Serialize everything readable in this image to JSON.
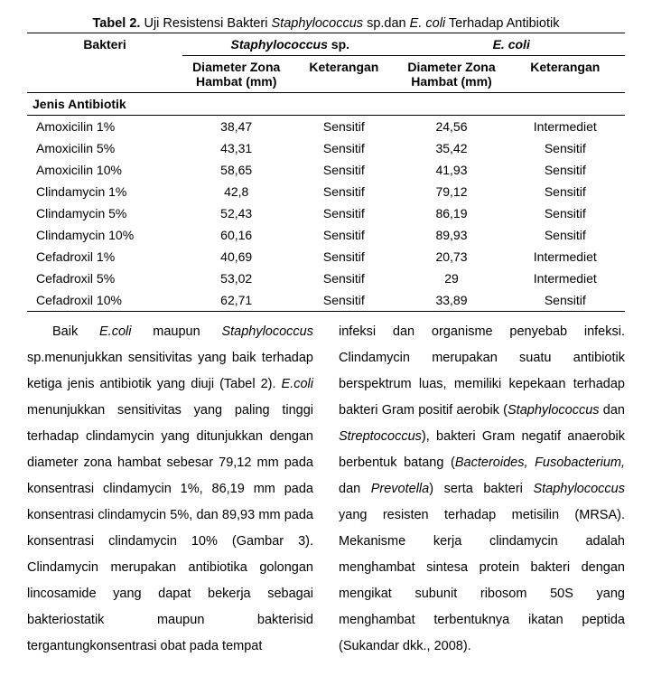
{
  "caption": {
    "label": "Tabel 2.",
    "text_before": " Uji Resistensi Bakteri ",
    "species1": "Staphylococcus",
    "text_mid1": " sp.dan ",
    "species2": "E. coli",
    "text_after": " Terhadap Antibiotik"
  },
  "table": {
    "col_bakteri": "Bakteri",
    "group_staph": "Staphylococcus",
    "group_staph_suffix": " sp.",
    "group_ecoli": "E. coli",
    "sub_dz": "Diameter Zona",
    "sub_hambat": "Hambat (mm)",
    "sub_ket": "Keterangan",
    "section": "Jenis Antibiotik",
    "rows": [
      {
        "name": "Amoxicilin 1%",
        "s_dz": "38,47",
        "s_ket": "Sensitif",
        "e_dz": "24,56",
        "e_ket": "Intermediet"
      },
      {
        "name": "Amoxicilin 5%",
        "s_dz": "43,31",
        "s_ket": "Sensitif",
        "e_dz": "35,42",
        "e_ket": "Sensitif"
      },
      {
        "name": "Amoxicilin 10%",
        "s_dz": "58,65",
        "s_ket": "Sensitif",
        "e_dz": "41,93",
        "e_ket": "Sensitif"
      },
      {
        "name": "Clindamycin 1%",
        "s_dz": "42,8",
        "s_ket": "Sensitif",
        "e_dz": "79,12",
        "e_ket": "Sensitif"
      },
      {
        "name": "Clindamycin 5%",
        "s_dz": "52,43",
        "s_ket": "Sensitif",
        "e_dz": "86,19",
        "e_ket": "Sensitif"
      },
      {
        "name": "Clindamycin 10%",
        "s_dz": "60,16",
        "s_ket": "Sensitif",
        "e_dz": "89,93",
        "e_ket": "Sensitif"
      },
      {
        "name": "Cefadroxil 1%",
        "s_dz": "40,69",
        "s_ket": "Sensitif",
        "e_dz": "20,73",
        "e_ket": "Intermediet"
      },
      {
        "name": "Cefadroxil 5%",
        "s_dz": "53,02",
        "s_ket": "Sensitif",
        "e_dz": "29",
        "e_ket": "Intermediet"
      },
      {
        "name": "Cefadroxil 10%",
        "s_dz": "62,71",
        "s_ket": "Sensitif",
        "e_dz": "33,89",
        "e_ket": "Sensitif"
      }
    ]
  },
  "para": {
    "left": {
      "l1a": "Baik ",
      "l1b": "E.coli",
      "l1c": " maupun ",
      "l1d": "Staphylococcus",
      "l2": "sp.menunjukkan sensitivitas yang baik terhadap ketiga jenis antibiotik yang diuji (Tabel 2). ",
      "l3a": "E.coli",
      "l3b": " menunjukkan sensitivitas yang paling tinggi terhadap clindamycin yang ditunjukkan dengan diameter zona hambat sebesar 79,12 mm pada konsentrasi clindamycin 1%, 86,19 mm pada konsentrasi clindamycin 5%, dan 89,93 mm pada konsentrasi clindamycin 10% (Gambar 3). Clindamycin merupakan antibiotika golongan lincosamide yang dapat bekerja sebagai bakteriostatik maupun bakterisid tergantungkonsentrasi obat pada tempat"
    },
    "right": {
      "r1": "infeksi dan organisme penyebab infeksi. Clindamycin merupakan suatu antibiotik berspektrum luas, memiliki kepekaan terhadap bakteri Gram positif aerobik (",
      "r2": "Staphylococcus",
      "r3": " dan ",
      "r4": "Streptococcus",
      "r5": "), bakteri Gram negatif anaerobik berbentuk batang (",
      "r6": "Bacteroides, Fusobacterium,",
      "r7": " dan ",
      "r8": "Prevotella",
      "r9": ") serta bakteri ",
      "r10": "Staphylococcus",
      "r11": " yang resisten terhadap metisilin (MRSA). Mekanisme kerja clindamycin adalah menghambat sintesa protein bakteri dengan mengikat subunit ribosom 50S yang menghambat terbentuknya ikatan peptida (Sukandar dkk., 2008)."
    }
  },
  "style": {
    "background": "#ffffff",
    "text_color": "#000000",
    "rule_color": "#000000",
    "font_size_pt": 11,
    "line_height": 2.0,
    "table_type": "table",
    "col_widths_pct": [
      26,
      18,
      18,
      18,
      20
    ]
  }
}
